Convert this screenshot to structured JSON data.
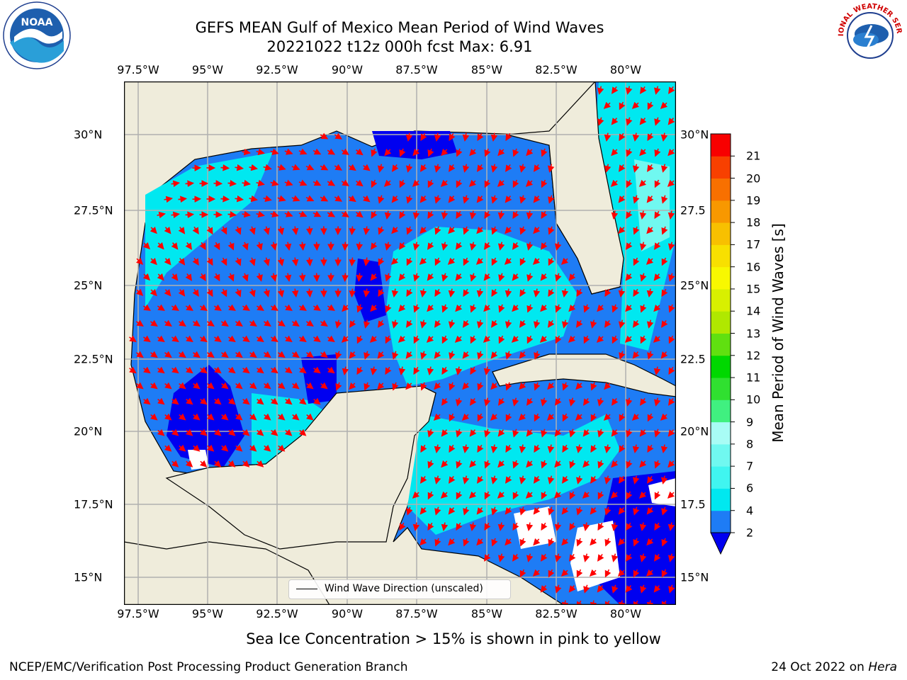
{
  "title": {
    "line1": "GEFS MEAN Gulf of Mexico Mean Period of Wind Waves",
    "line2": "20221022 t12z 000h fcst   Max: 6.91"
  },
  "lon_ticks": [
    "97.5°W",
    "95°W",
    "92.5°W",
    "90°W",
    "87.5°W",
    "85°W",
    "82.5°W",
    "80°W"
  ],
  "lat_ticks_left": [
    "30°N",
    "27.5°N",
    "25°N",
    "22.5°N",
    "20°N",
    "17.5°N",
    "15°N"
  ],
  "lat_ticks_right": [
    "30°N",
    "27.5",
    "25°N",
    "22.5",
    "20°N",
    "17.5",
    "15°N"
  ],
  "legend": {
    "label": "Wind Wave Direction (unscaled)"
  },
  "colorbar": {
    "label": "Mean Period of Wind Waves [s]",
    "ticks": [
      "2",
      "4",
      "6",
      "7",
      "8",
      "9",
      "10",
      "11",
      "12",
      "13",
      "14",
      "15",
      "16",
      "17",
      "18",
      "19",
      "20",
      "21"
    ],
    "colors": [
      "#1e7cf5",
      "#00e8f0",
      "#40f5f0",
      "#70f8f0",
      "#a8fcf5",
      "#40f080",
      "#30e030",
      "#00d800",
      "#60e010",
      "#b0e800",
      "#d8f000",
      "#f8f800",
      "#f8e000",
      "#f8c000",
      "#f89800",
      "#f87000",
      "#f84000",
      "#f80000"
    ],
    "under_color": "#0000f0"
  },
  "caption": "Sea Ice Concentration > 15% is shown in pink to yellow",
  "footer": {
    "left": "NCEP/EMC/Verification Post Processing Product Generation Branch",
    "right_date": "24 Oct 2022 on ",
    "right_host": "Hera"
  },
  "logos": {
    "left": "NOAA",
    "right": "NATIONAL WEATHER SERVICE"
  },
  "colors": {
    "land": "#efecdb",
    "water_white": "#ffffff",
    "arrow": "#ff0000",
    "grid": "#b0b0b0"
  }
}
